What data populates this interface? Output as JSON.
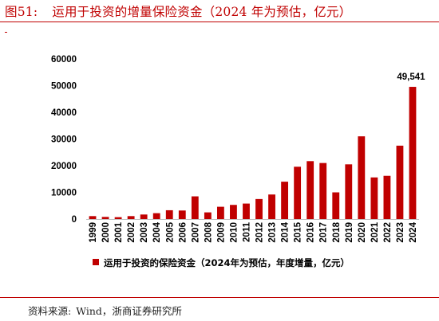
{
  "header": {
    "figure_label": "图51:",
    "title": "运用于投资的增量保险资金（2024 年为预估，亿元）"
  },
  "source": {
    "label": "资料来源:",
    "text": "Wind，浙商证券研究所"
  },
  "colors": {
    "accent": "#c00000",
    "bar": "#c00000",
    "axis_text": "#000000"
  },
  "chart_data": {
    "type": "bar",
    "categories": [
      "1999",
      "2000",
      "2001",
      "2002",
      "2003",
      "2004",
      "2005",
      "2006",
      "2007",
      "2008",
      "2009",
      "2010",
      "2011",
      "2012",
      "2013",
      "2014",
      "2015",
      "2016",
      "2017",
      "2018",
      "2019",
      "2020",
      "2021",
      "2022",
      "2023",
      "2024"
    ],
    "series": [
      {
        "name": "运用于投资的保险资金（2024年为预估，年度增量，亿元）",
        "values": [
          1100,
          800,
          700,
          1100,
          1700,
          2200,
          3300,
          3200,
          8500,
          2500,
          4600,
          5300,
          5800,
          7500,
          9200,
          14000,
          19600,
          21700,
          21000,
          10000,
          20500,
          31000,
          15600,
          16200,
          27500,
          49541
        ]
      }
    ],
    "yticks": [
      "0",
      "10000",
      "20000",
      "30000",
      "40000",
      "50000",
      "60000"
    ],
    "ylim": [
      0,
      60000
    ],
    "annotations": [
      {
        "category": "2024",
        "text": "49,541"
      }
    ],
    "legend_position": "bottom",
    "grid": false
  }
}
